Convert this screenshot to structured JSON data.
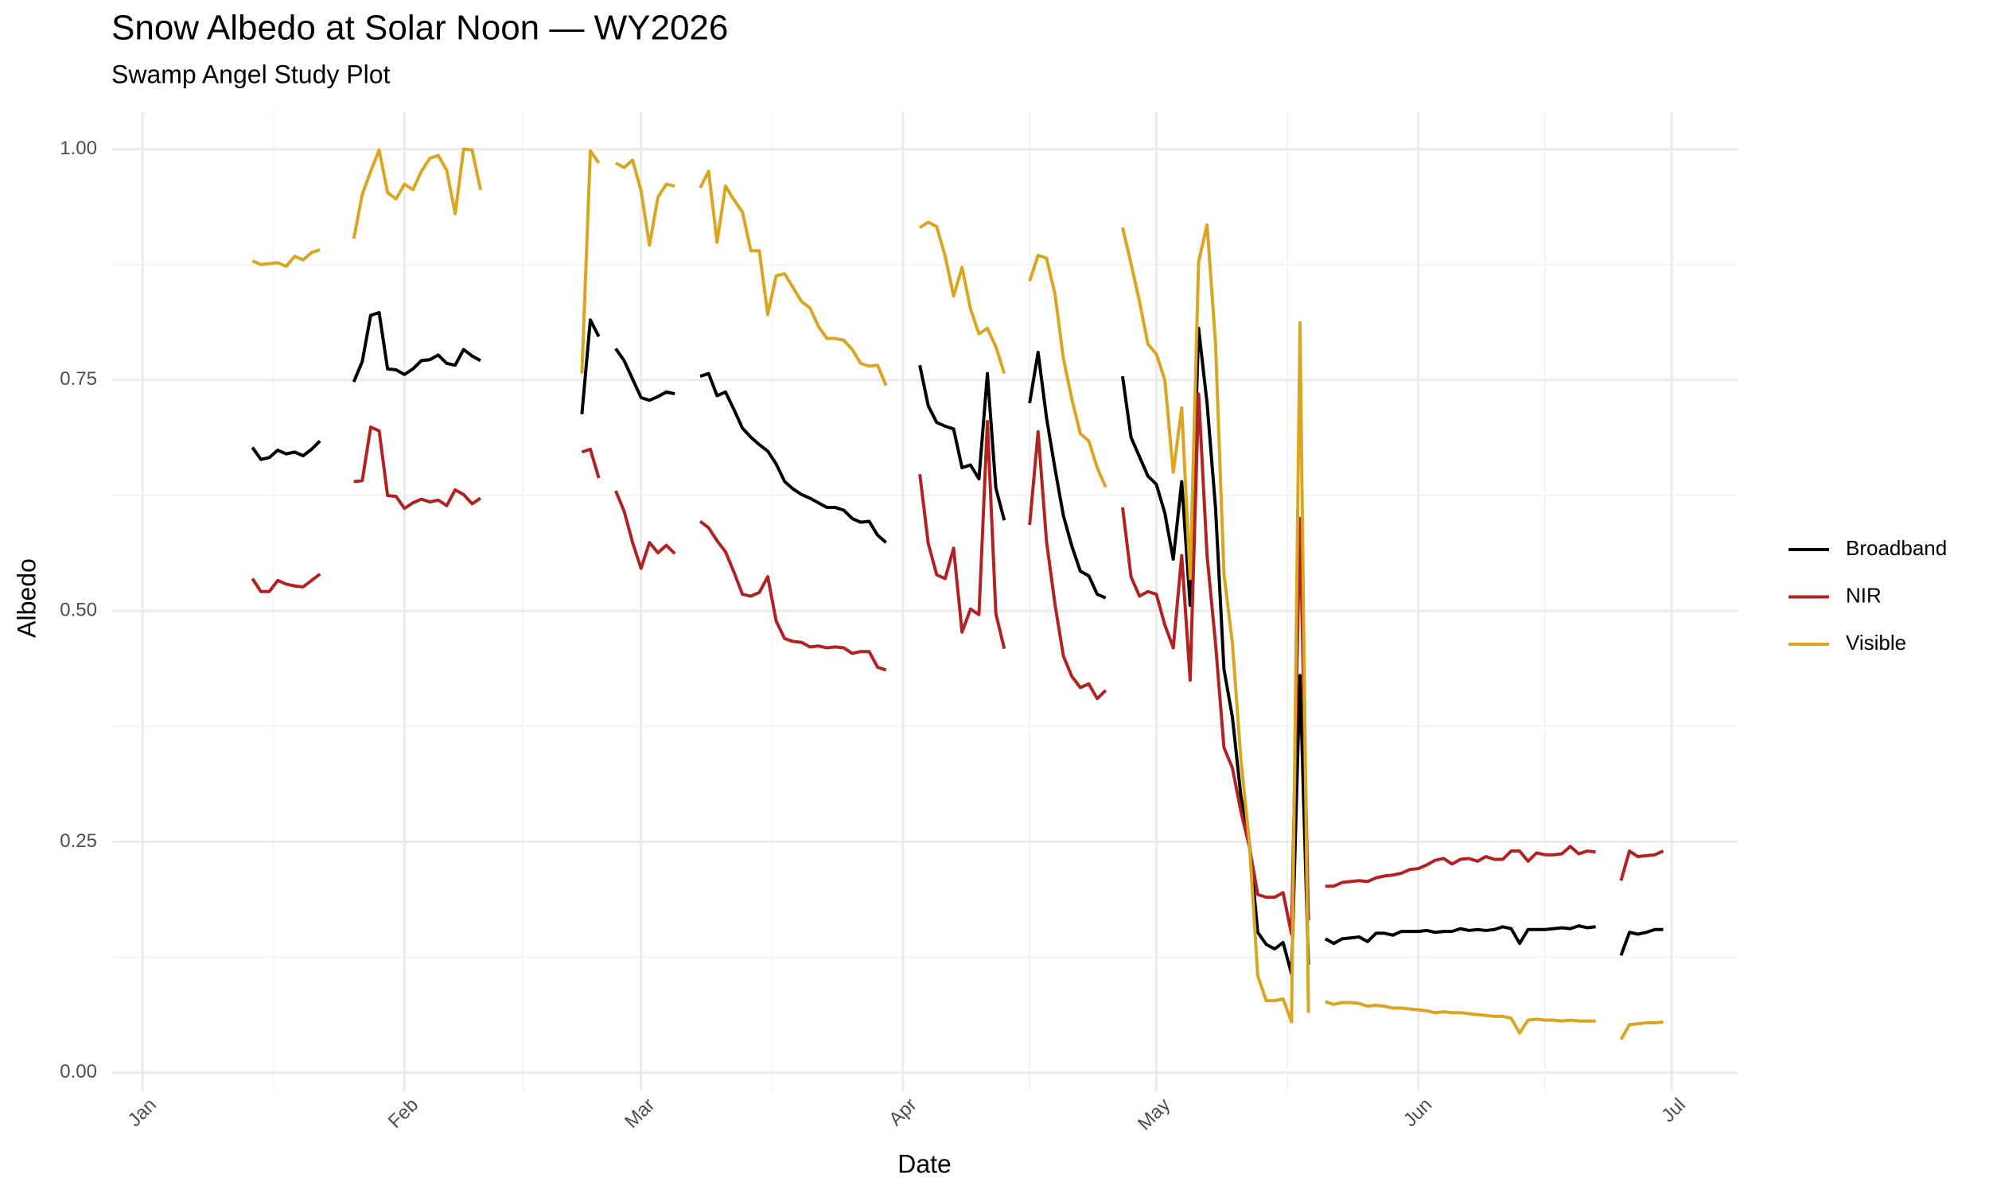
{
  "chart_data": {
    "type": "line",
    "title": "Snow Albedo at Solar Noon — WY2026",
    "subtitle": "Swamp Angel Study Plot",
    "x_label": "Date",
    "y_label": "Albedo",
    "x": [
      13,
      14,
      15,
      16,
      17,
      18,
      19,
      20,
      21,
      22,
      25,
      26,
      27,
      28,
      29,
      30,
      31,
      32,
      33,
      34,
      35,
      36,
      37,
      38,
      39,
      40,
      41,
      52,
      53,
      54,
      55,
      56,
      57,
      58,
      59,
      60,
      61,
      62,
      63,
      64,
      66,
      67,
      68,
      69,
      70,
      71,
      72,
      73,
      74,
      75,
      76,
      77,
      78,
      79,
      80,
      81,
      82,
      83,
      84,
      85,
      86,
      87,
      88,
      89,
      92,
      93,
      94,
      95,
      96,
      97,
      98,
      99,
      100,
      101,
      102,
      103,
      105,
      106,
      107,
      108,
      109,
      110,
      111,
      112,
      113,
      114,
      115,
      116,
      117,
      118,
      119,
      120,
      121,
      122,
      123,
      124,
      125,
      126,
      127,
      128,
      129,
      130,
      131,
      132,
      133,
      134,
      135,
      136,
      137,
      138,
      139,
      140,
      141,
      142,
      143,
      144,
      145,
      146,
      147,
      148,
      149,
      150,
      151,
      152,
      153,
      154,
      155,
      156,
      157,
      158,
      159,
      160,
      161,
      162,
      163,
      164,
      165,
      166,
      167,
      168,
      169,
      170,
      171,
      172,
      173,
      175,
      176,
      177,
      178,
      179,
      180
    ],
    "series": [
      {
        "name": "Broadband",
        "color": "#000000",
        "values": [
          0.677,
          0.664,
          0.666,
          0.674,
          0.67,
          0.672,
          0.668,
          0.675,
          0.684,
          null,
          0.748,
          0.77,
          0.82,
          0.823,
          0.762,
          0.761,
          0.756,
          0.762,
          0.771,
          0.772,
          0.777,
          0.768,
          0.766,
          0.783,
          0.776,
          0.771,
          null,
          0.713,
          0.815,
          0.797,
          null,
          0.784,
          0.771,
          0.751,
          0.731,
          0.728,
          0.732,
          0.737,
          0.735,
          null,
          0.754,
          0.757,
          0.733,
          0.737,
          0.718,
          0.698,
          0.688,
          0.68,
          0.673,
          0.659,
          0.64,
          0.632,
          0.626,
          0.622,
          0.617,
          0.612,
          0.612,
          0.609,
          0.6,
          0.596,
          0.597,
          0.582,
          0.574,
          null,
          0.766,
          0.722,
          0.704,
          0.7,
          0.697,
          0.655,
          0.658,
          0.643,
          0.757,
          0.633,
          0.598,
          null,
          0.725,
          0.78,
          0.709,
          0.654,
          0.603,
          0.57,
          0.543,
          0.538,
          0.518,
          0.514,
          null,
          0.754,
          0.688,
          0.667,
          0.646,
          0.637,
          0.606,
          0.556,
          0.64,
          0.506,
          0.806,
          0.725,
          0.612,
          0.437,
          0.385,
          0.3,
          0.25,
          0.152,
          0.139,
          0.134,
          0.141,
          0.107,
          0.43,
          0.117,
          null,
          0.145,
          0.14,
          0.145,
          0.146,
          0.147,
          0.142,
          0.151,
          0.151,
          0.149,
          0.153,
          0.153,
          0.153,
          0.154,
          0.152,
          0.153,
          0.153,
          0.156,
          0.154,
          0.155,
          0.154,
          0.155,
          0.158,
          0.156,
          0.14,
          0.155,
          0.155,
          0.155,
          0.156,
          0.157,
          0.156,
          0.159,
          0.157,
          0.158,
          null,
          0.127,
          0.152,
          0.15,
          0.152,
          0.155,
          0.155
        ]
      },
      {
        "name": "NIR",
        "color": "#b22222",
        "values": [
          0.535,
          0.521,
          0.521,
          0.533,
          0.529,
          0.527,
          0.526,
          0.533,
          0.54,
          null,
          0.64,
          0.641,
          0.699,
          0.695,
          0.625,
          0.624,
          0.611,
          0.617,
          0.621,
          0.618,
          0.62,
          0.614,
          0.631,
          0.626,
          0.616,
          0.622,
          null,
          0.672,
          0.675,
          0.644,
          null,
          0.63,
          0.608,
          0.574,
          0.546,
          0.574,
          0.563,
          0.571,
          0.562,
          null,
          0.597,
          0.59,
          0.576,
          0.564,
          0.542,
          0.518,
          0.516,
          0.52,
          0.537,
          0.489,
          0.47,
          0.467,
          0.466,
          0.461,
          0.462,
          0.46,
          0.461,
          0.46,
          0.454,
          0.456,
          0.456,
          0.439,
          0.436,
          null,
          0.648,
          0.573,
          0.539,
          0.535,
          0.568,
          0.477,
          0.502,
          0.496,
          0.705,
          0.497,
          0.459,
          null,
          0.593,
          0.694,
          0.575,
          0.507,
          0.451,
          0.429,
          0.417,
          0.421,
          0.405,
          0.414,
          null,
          0.612,
          0.537,
          0.516,
          0.521,
          0.518,
          0.485,
          0.46,
          0.56,
          0.425,
          0.735,
          0.56,
          0.465,
          0.352,
          0.33,
          0.283,
          0.245,
          0.193,
          0.19,
          0.19,
          0.195,
          0.15,
          0.6,
          0.165,
          null,
          0.202,
          0.202,
          0.206,
          0.207,
          0.208,
          0.207,
          0.211,
          0.213,
          0.214,
          0.216,
          0.22,
          0.221,
          0.225,
          0.23,
          0.232,
          0.226,
          0.231,
          0.232,
          0.229,
          0.234,
          0.231,
          0.231,
          0.24,
          0.24,
          0.229,
          0.238,
          0.236,
          0.236,
          0.237,
          0.245,
          0.237,
          0.24,
          0.239,
          null,
          0.208,
          0.24,
          0.234,
          0.235,
          0.236,
          0.24
        ]
      },
      {
        "name": "Visible",
        "color": "#daa520",
        "values": [
          0.879,
          0.875,
          0.876,
          0.877,
          0.873,
          0.884,
          0.88,
          0.888,
          0.891,
          null,
          0.903,
          0.951,
          0.976,
          0.999,
          0.953,
          0.946,
          0.962,
          0.956,
          0.976,
          0.99,
          0.993,
          0.977,
          0.93,
          1.0,
          0.999,
          0.956,
          null,
          0.757,
          0.998,
          0.985,
          null,
          0.985,
          0.98,
          0.988,
          0.955,
          0.896,
          0.948,
          0.962,
          0.96,
          null,
          0.958,
          0.976,
          0.899,
          0.96,
          0.945,
          0.932,
          0.89,
          0.89,
          0.821,
          0.863,
          0.865,
          0.85,
          0.835,
          0.828,
          0.808,
          0.795,
          0.795,
          0.793,
          0.783,
          0.768,
          0.765,
          0.766,
          0.744,
          null,
          0.915,
          0.921,
          0.916,
          0.884,
          0.841,
          0.872,
          0.827,
          0.8,
          0.806,
          0.786,
          0.757,
          null,
          0.857,
          0.885,
          0.882,
          0.843,
          0.773,
          0.729,
          0.692,
          0.684,
          0.655,
          0.634,
          null,
          0.915,
          0.876,
          0.835,
          0.789,
          0.778,
          0.75,
          0.65,
          0.72,
          0.535,
          0.878,
          0.918,
          0.79,
          0.54,
          0.465,
          0.34,
          0.25,
          0.105,
          0.078,
          0.078,
          0.08,
          0.055,
          0.812,
          0.065,
          null,
          0.077,
          0.074,
          0.076,
          0.076,
          0.075,
          0.072,
          0.073,
          0.072,
          0.07,
          0.07,
          0.069,
          0.068,
          0.067,
          0.065,
          0.066,
          0.065,
          0.065,
          0.064,
          0.063,
          0.062,
          0.061,
          0.061,
          0.059,
          0.043,
          0.057,
          0.058,
          0.057,
          0.057,
          0.056,
          0.057,
          0.056,
          0.056,
          0.056,
          null,
          0.036,
          0.052,
          0.053,
          0.054,
          0.054,
          0.055
        ]
      }
    ],
    "xlim": [
      -3.6,
      188.8
    ],
    "xticks": [
      {
        "value": 0,
        "label": "Jan"
      },
      {
        "value": 31,
        "label": "Feb"
      },
      {
        "value": 59,
        "label": "Mar"
      },
      {
        "value": 90,
        "label": "Apr"
      },
      {
        "value": 120,
        "label": "May"
      },
      {
        "value": 151,
        "label": "Jun"
      },
      {
        "value": 181,
        "label": "Jul"
      }
    ],
    "ylim": [
      -0.02,
      1.04
    ],
    "yticks": [
      {
        "value": 0,
        "label": "0.00"
      },
      {
        "value": 0.25,
        "label": "0.25"
      },
      {
        "value": 0.5,
        "label": "0.50"
      },
      {
        "value": 0.75,
        "label": "0.75"
      },
      {
        "value": 1,
        "label": "1.00"
      }
    ],
    "grid": true,
    "minor_grid": true,
    "legend_position": "right"
  }
}
